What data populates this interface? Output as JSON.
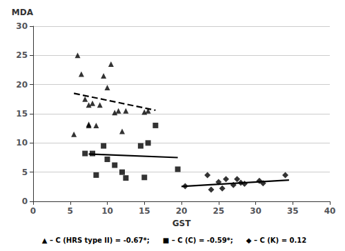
{
  "chart_data": {
    "type": "scatter",
    "xlabel": "GST",
    "ylabel": "MDA",
    "xlim": [
      0,
      40
    ],
    "ylim": [
      0,
      30
    ],
    "xticks": [
      0,
      5,
      10,
      15,
      20,
      25,
      30,
      35,
      40
    ],
    "yticks": [
      0,
      5,
      10,
      15,
      20,
      25,
      30
    ],
    "grid": "y",
    "legend": "bottom",
    "series": [
      {
        "name": "▲ – C (HRS type II) = -0.67*;",
        "type": "scatter",
        "marker": "triangle",
        "color": "black",
        "x": [
          5.5,
          6.0,
          6.5,
          7.0,
          7.5,
          7.5,
          7.5,
          8.0,
          8.5,
          9.0,
          9.5,
          10.0,
          10.5,
          11.0,
          11.5,
          12.0,
          12.5,
          15.0,
          15.5
        ],
        "values": [
          11.5,
          25.0,
          21.8,
          17.5,
          16.5,
          13.2,
          13.0,
          16.8,
          13.0,
          16.5,
          21.5,
          19.5,
          23.5,
          15.2,
          15.5,
          12.0,
          15.5,
          15.3,
          15.5
        ]
      },
      {
        "name": "■ – C (C) = -0.59*;",
        "type": "scatter",
        "marker": "square",
        "color": "black",
        "x": [
          7.0,
          8.0,
          8.5,
          9.5,
          10.0,
          11.0,
          12.0,
          12.5,
          14.5,
          15.0,
          15.5,
          16.5,
          19.5
        ],
        "values": [
          8.2,
          8.2,
          4.5,
          9.5,
          7.2,
          6.2,
          5.0,
          4.0,
          9.5,
          4.1,
          10.0,
          13.0,
          5.5
        ]
      },
      {
        "name": "◆ – C (K) = 0.12",
        "type": "scatter",
        "marker": "diamond",
        "color": "black",
        "x": [
          20.5,
          23.5,
          24.0,
          25.0,
          25.5,
          26.0,
          27.0,
          27.5,
          28.0,
          28.5,
          30.5,
          31.0,
          34.0
        ],
        "values": [
          2.6,
          4.5,
          2.0,
          3.3,
          2.2,
          3.8,
          2.8,
          3.8,
          3.2,
          3.0,
          3.5,
          3.1,
          4.5
        ]
      },
      {
        "type": "line",
        "line_style": "dashed",
        "color": "black",
        "x": [
          5.5,
          16.5
        ],
        "values": [
          18.5,
          15.6
        ]
      },
      {
        "type": "line",
        "line_style": "solid",
        "color": "black",
        "x": [
          7.5,
          19.5
        ],
        "values": [
          8.1,
          7.5
        ]
      },
      {
        "type": "line",
        "line_style": "solid",
        "color": "black",
        "x": [
          20.0,
          34.5
        ],
        "values": [
          2.55,
          3.65
        ]
      }
    ]
  }
}
